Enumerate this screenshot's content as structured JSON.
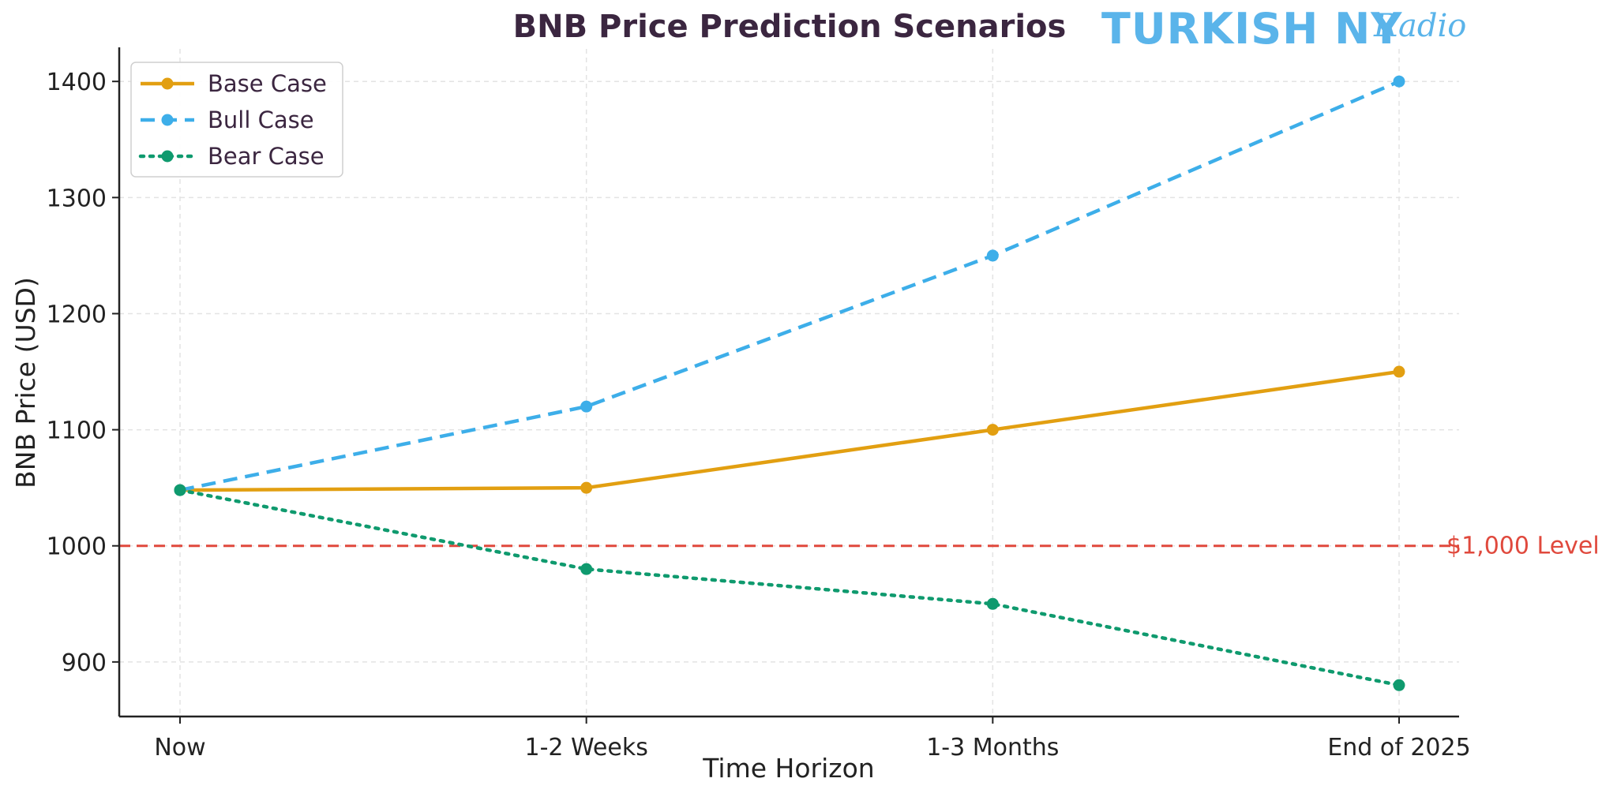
{
  "brand": {
    "logo_main": "TURKISH NY",
    "logo_script": "Radio"
  },
  "colors": {
    "title": "#3b2640",
    "axis": "#222222",
    "grid": "#e3e3e3",
    "base": "#e29f11",
    "bull": "#3daee9",
    "bear": "#0f9a6e",
    "level": "#e0493d"
  },
  "chart_data": {
    "type": "line",
    "title": "BNB Price Prediction Scenarios",
    "xlabel": "Time Horizon",
    "ylabel": "BNB Price (USD)",
    "categories": [
      "Now",
      "1-2 Weeks",
      "1-3 Months",
      "End of 2025"
    ],
    "ylim": [
      853,
      1428
    ],
    "yticks": [
      900,
      1000,
      1100,
      1200,
      1300,
      1400
    ],
    "grid": true,
    "legend_position": "top-left",
    "series": [
      {
        "name": "Base Case",
        "values": [
          1048,
          1050,
          1100,
          1150
        ],
        "color": "#e29f11",
        "style": "solid"
      },
      {
        "name": "Bull Case",
        "values": [
          1048,
          1120,
          1250,
          1400
        ],
        "color": "#3daee9",
        "style": "dashed"
      },
      {
        "name": "Bear Case",
        "values": [
          1048,
          980,
          950,
          880
        ],
        "color": "#0f9a6e",
        "style": "dotted"
      }
    ],
    "reference_line": {
      "value": 1000,
      "label": "$1,000 Level",
      "color": "#e0493d"
    }
  }
}
